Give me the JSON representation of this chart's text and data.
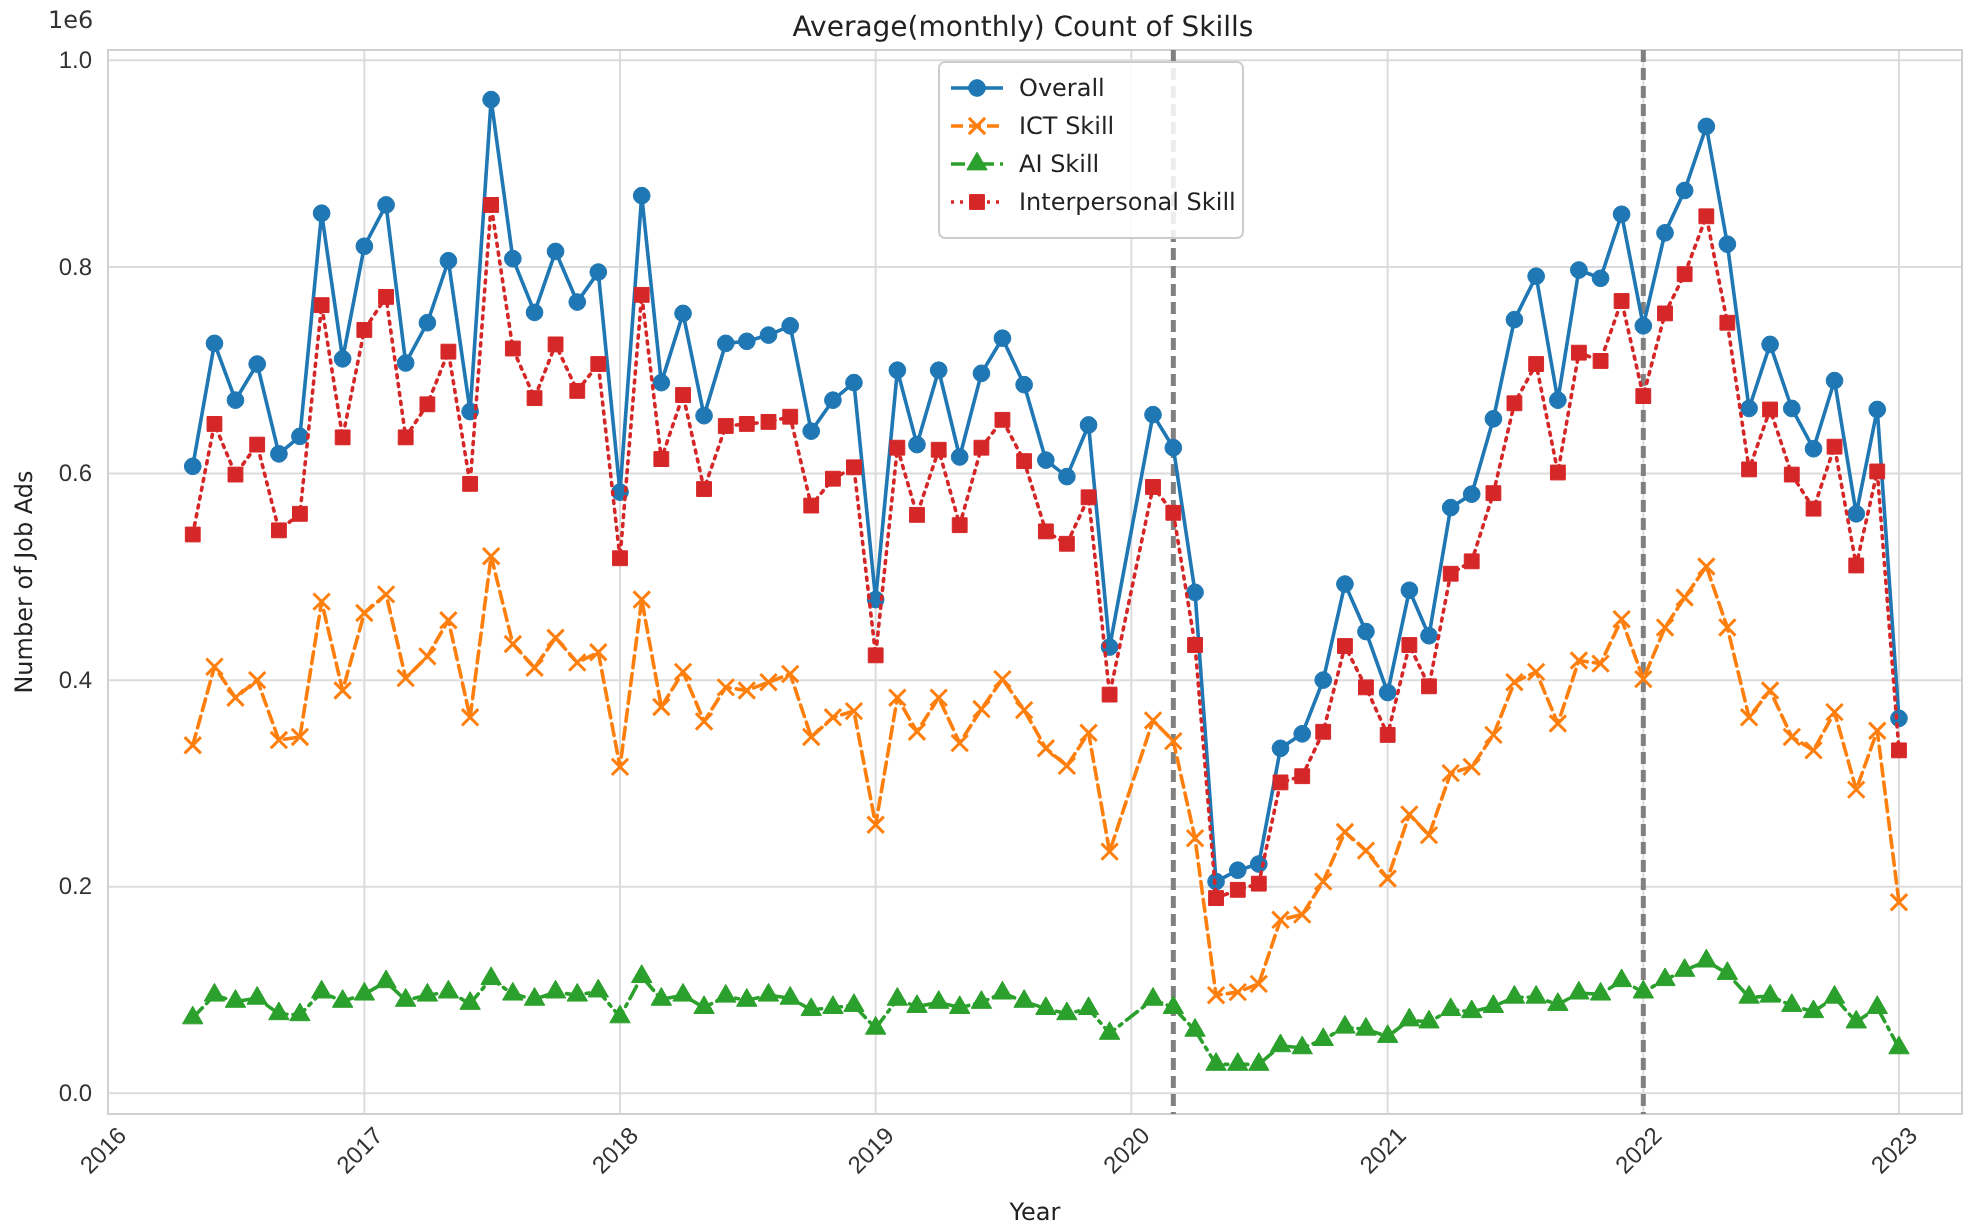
{
  "chart_data": {
    "type": "line",
    "title": "Average(monthly) Count of Skills",
    "xlabel": "Year",
    "ylabel": "Number of Job Ads",
    "annotations": [
      "1e6"
    ],
    "x": [
      "2016-05",
      "2016-06",
      "2016-07",
      "2016-08",
      "2016-09",
      "2016-10",
      "2016-11",
      "2016-12",
      "2017-01",
      "2017-02",
      "2017-03",
      "2017-04",
      "2017-05",
      "2017-06",
      "2017-07",
      "2017-08",
      "2017-09",
      "2017-10",
      "2017-11",
      "2017-12",
      "2018-01",
      "2018-02",
      "2018-03",
      "2018-04",
      "2018-05",
      "2018-06",
      "2018-07",
      "2018-08",
      "2018-09",
      "2018-10",
      "2018-11",
      "2018-12",
      "2019-01",
      "2019-02",
      "2019-03",
      "2019-04",
      "2019-05",
      "2019-06",
      "2019-07",
      "2019-08",
      "2019-09",
      "2019-10",
      "2019-11",
      "2019-12",
      "2020-02",
      "2020-03",
      "2020-04",
      "2020-05",
      "2020-06",
      "2020-07",
      "2020-08",
      "2020-09",
      "2020-10",
      "2020-11",
      "2020-12",
      "2021-01",
      "2021-02",
      "2021-03",
      "2021-04",
      "2021-05",
      "2021-06",
      "2021-07",
      "2021-08",
      "2021-09",
      "2021-10",
      "2021-11",
      "2021-12",
      "2022-01",
      "2022-02",
      "2022-03",
      "2022-04",
      "2022-05",
      "2022-06",
      "2022-07",
      "2022-08",
      "2022-09",
      "2022-10",
      "2022-11",
      "2022-12",
      "2023-01"
    ],
    "series": [
      {
        "name": "Overall",
        "color": "#1f77b4",
        "marker": "circle",
        "line_style": "solid",
        "values": [
          0.607,
          0.726,
          0.671,
          0.706,
          0.619,
          0.636,
          0.852,
          0.711,
          0.82,
          0.86,
          0.707,
          0.746,
          0.806,
          0.66,
          0.962,
          0.808,
          0.756,
          0.815,
          0.766,
          0.795,
          0.582,
          0.869,
          0.688,
          0.755,
          0.656,
          0.726,
          0.728,
          0.734,
          0.743,
          0.641,
          0.671,
          0.688,
          0.478,
          0.7,
          0.628,
          0.7,
          0.616,
          0.697,
          0.731,
          0.686,
          0.613,
          0.597,
          0.647,
          0.432,
          0.657,
          0.625,
          0.485,
          0.205,
          0.216,
          0.222,
          0.334,
          0.348,
          0.4,
          0.493,
          0.447,
          0.388,
          0.487,
          0.443,
          0.567,
          0.58,
          0.653,
          0.749,
          0.791,
          0.671,
          0.797,
          0.789,
          0.851,
          0.743,
          0.833,
          0.874,
          0.936,
          0.822,
          0.663,
          0.725,
          0.663,
          0.624,
          0.69,
          0.561,
          0.662,
          0.363
        ]
      },
      {
        "name": "ICT Skill",
        "color": "#ff7f0e",
        "marker": "cross",
        "line_style": "dashed",
        "values": [
          0.337,
          0.413,
          0.383,
          0.4,
          0.342,
          0.345,
          0.476,
          0.39,
          0.465,
          0.483,
          0.402,
          0.423,
          0.458,
          0.364,
          0.52,
          0.435,
          0.412,
          0.441,
          0.417,
          0.427,
          0.316,
          0.478,
          0.374,
          0.408,
          0.36,
          0.393,
          0.39,
          0.398,
          0.406,
          0.345,
          0.364,
          0.37,
          0.26,
          0.383,
          0.35,
          0.383,
          0.339,
          0.372,
          0.401,
          0.371,
          0.334,
          0.317,
          0.349,
          0.234,
          0.361,
          0.341,
          0.247,
          0.095,
          0.098,
          0.106,
          0.168,
          0.173,
          0.205,
          0.253,
          0.235,
          0.208,
          0.27,
          0.25,
          0.31,
          0.316,
          0.347,
          0.398,
          0.408,
          0.358,
          0.419,
          0.416,
          0.459,
          0.401,
          0.451,
          0.48,
          0.51,
          0.451,
          0.364,
          0.39,
          0.345,
          0.332,
          0.369,
          0.294,
          0.351,
          0.185
        ]
      },
      {
        "name": "AI Skill",
        "color": "#2ca02c",
        "marker": "triangle",
        "line_style": "dashdot",
        "values": [
          0.073,
          0.095,
          0.089,
          0.092,
          0.077,
          0.076,
          0.098,
          0.089,
          0.096,
          0.108,
          0.09,
          0.095,
          0.098,
          0.087,
          0.111,
          0.096,
          0.091,
          0.098,
          0.095,
          0.099,
          0.074,
          0.113,
          0.091,
          0.095,
          0.083,
          0.094,
          0.09,
          0.095,
          0.092,
          0.081,
          0.083,
          0.085,
          0.063,
          0.091,
          0.084,
          0.088,
          0.083,
          0.088,
          0.097,
          0.089,
          0.082,
          0.077,
          0.082,
          0.058,
          0.091,
          0.083,
          0.061,
          0.028,
          0.028,
          0.028,
          0.046,
          0.044,
          0.052,
          0.064,
          0.062,
          0.055,
          0.071,
          0.069,
          0.081,
          0.079,
          0.084,
          0.093,
          0.093,
          0.086,
          0.097,
          0.096,
          0.109,
          0.098,
          0.11,
          0.119,
          0.128,
          0.116,
          0.093,
          0.094,
          0.085,
          0.079,
          0.093,
          0.069,
          0.083,
          0.044
        ]
      },
      {
        "name": "Interpersonal Skill",
        "color": "#d62728",
        "marker": "square",
        "line_style": "dotted",
        "values": [
          0.541,
          0.648,
          0.599,
          0.628,
          0.545,
          0.561,
          0.763,
          0.635,
          0.739,
          0.771,
          0.635,
          0.667,
          0.718,
          0.59,
          0.86,
          0.721,
          0.673,
          0.725,
          0.68,
          0.706,
          0.518,
          0.773,
          0.614,
          0.676,
          0.585,
          0.646,
          0.648,
          0.65,
          0.655,
          0.569,
          0.595,
          0.606,
          0.424,
          0.625,
          0.56,
          0.623,
          0.55,
          0.625,
          0.652,
          0.612,
          0.544,
          0.532,
          0.577,
          0.386,
          0.587,
          0.562,
          0.434,
          0.189,
          0.197,
          0.203,
          0.301,
          0.307,
          0.35,
          0.433,
          0.393,
          0.347,
          0.434,
          0.394,
          0.503,
          0.515,
          0.581,
          0.668,
          0.706,
          0.601,
          0.717,
          0.709,
          0.767,
          0.675,
          0.755,
          0.793,
          0.849,
          0.746,
          0.604,
          0.662,
          0.599,
          0.566,
          0.626,
          0.511,
          0.602,
          0.332
        ]
      }
    ],
    "xlim": [
      "2016-01",
      "2023-04"
    ],
    "xticks": [
      "2016",
      "2017",
      "2018",
      "2019",
      "2020",
      "2021",
      "2022",
      "2023"
    ],
    "ylim": [
      -0.02,
      1.01
    ],
    "yticks": [
      {
        "value": 0,
        "label": "0.0"
      },
      0.2,
      0.4,
      0.6,
      0.8,
      {
        "value": 1,
        "label": "1.0"
      }
    ],
    "ref_lines": [
      {
        "axis": "x",
        "value": "2020-03",
        "color": "#808080",
        "line_style": "dashed"
      },
      {
        "axis": "x",
        "value": "2022-01",
        "color": "#808080",
        "line_style": "dashed"
      }
    ],
    "grid": true,
    "legend": "top"
  }
}
